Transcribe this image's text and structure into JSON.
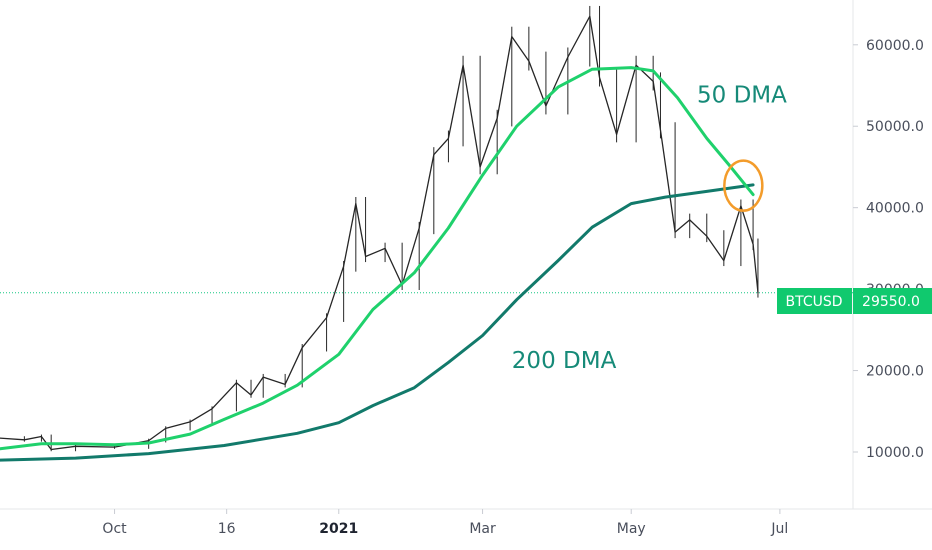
{
  "chart_data": {
    "type": "line",
    "symbol": "BTCUSD",
    "last_price_label": "29550.0",
    "last_price": 29550,
    "ylim": [
      3000,
      65500
    ],
    "y_ticks": [
      {
        "value": 60000,
        "label": "60000.0"
      },
      {
        "value": 50000,
        "label": "50000.0"
      },
      {
        "value": 40000,
        "label": "40000.0"
      },
      {
        "value": 30000,
        "label": "30000.0"
      },
      {
        "value": 20000,
        "label": "20000.0"
      },
      {
        "value": 10000,
        "label": "10000.0"
      }
    ],
    "xlim": [
      "2020-08-15",
      "2021-07-31"
    ],
    "x_ticks": [
      {
        "date": "2020-10-01",
        "label": "Oct",
        "bold": false
      },
      {
        "date": "2020-11-16",
        "label": "16",
        "bold": false
      },
      {
        "date": "2021-01-01",
        "label": "2021",
        "bold": true
      },
      {
        "date": "2021-03-01",
        "label": "Mar",
        "bold": false
      },
      {
        "date": "2021-05-01",
        "label": "May",
        "bold": false
      },
      {
        "date": "2021-07-01",
        "label": "Jul",
        "bold": false
      }
    ],
    "series": [
      {
        "name": "50 DMA",
        "color": "#1fd16c",
        "points": [
          [
            "2020-08-15",
            10400
          ],
          [
            "2020-09-01",
            11000
          ],
          [
            "2020-09-15",
            11000
          ],
          [
            "2020-10-01",
            10900
          ],
          [
            "2020-10-15",
            11100
          ],
          [
            "2020-11-01",
            12200
          ],
          [
            "2020-11-15",
            14000
          ],
          [
            "2020-12-01",
            16000
          ],
          [
            "2020-12-15",
            18200
          ],
          [
            "2021-01-01",
            22000
          ],
          [
            "2021-01-15",
            27500
          ],
          [
            "2021-02-01",
            32000
          ],
          [
            "2021-02-15",
            37500
          ],
          [
            "2021-03-01",
            44000
          ],
          [
            "2021-03-15",
            50000
          ],
          [
            "2021-04-01",
            54800
          ],
          [
            "2021-04-15",
            57000
          ],
          [
            "2021-05-01",
            57200
          ],
          [
            "2021-05-10",
            56800
          ],
          [
            "2021-05-20",
            53500
          ],
          [
            "2021-06-01",
            48500
          ],
          [
            "2021-06-10",
            45300
          ],
          [
            "2021-06-20",
            41600
          ]
        ]
      },
      {
        "name": "200 DMA",
        "color": "#127a6b",
        "points": [
          [
            "2020-08-15",
            9000
          ],
          [
            "2020-09-15",
            9250
          ],
          [
            "2020-10-15",
            9800
          ],
          [
            "2020-11-15",
            10800
          ],
          [
            "2020-12-15",
            12300
          ],
          [
            "2021-01-01",
            13600
          ],
          [
            "2021-01-15",
            15700
          ],
          [
            "2021-02-01",
            17900
          ],
          [
            "2021-02-15",
            21000
          ],
          [
            "2021-03-01",
            24300
          ],
          [
            "2021-03-15",
            28700
          ],
          [
            "2021-04-01",
            33500
          ],
          [
            "2021-04-15",
            37600
          ],
          [
            "2021-05-01",
            40500
          ],
          [
            "2021-05-15",
            41300
          ],
          [
            "2021-06-01",
            42000
          ],
          [
            "2021-06-20",
            42800
          ]
        ]
      },
      {
        "name": "BTCUSD",
        "color": "#262626",
        "points": [
          [
            "2020-08-15",
            11700
          ],
          [
            "2020-08-25",
            11500
          ],
          [
            "2020-09-01",
            11900
          ],
          [
            "2020-09-05",
            10300
          ],
          [
            "2020-09-15",
            10700
          ],
          [
            "2020-10-01",
            10600
          ],
          [
            "2020-10-15",
            11400
          ],
          [
            "2020-10-22",
            12900
          ],
          [
            "2020-11-01",
            13700
          ],
          [
            "2020-11-10",
            15300
          ],
          [
            "2020-11-20",
            18500
          ],
          [
            "2020-11-26",
            17000
          ],
          [
            "2020-12-01",
            19200
          ],
          [
            "2020-12-10",
            18300
          ],
          [
            "2020-12-17",
            22800
          ],
          [
            "2020-12-27",
            26500
          ],
          [
            "2021-01-03",
            32800
          ],
          [
            "2021-01-08",
            40500
          ],
          [
            "2021-01-12",
            34000
          ],
          [
            "2021-01-20",
            35000
          ],
          [
            "2021-01-27",
            30500
          ],
          [
            "2021-02-03",
            37500
          ],
          [
            "2021-02-09",
            46500
          ],
          [
            "2021-02-15",
            48500
          ],
          [
            "2021-02-21",
            57500
          ],
          [
            "2021-02-28",
            45000
          ],
          [
            "2021-03-07",
            51000
          ],
          [
            "2021-03-13",
            61000
          ],
          [
            "2021-03-20",
            58000
          ],
          [
            "2021-03-27",
            52500
          ],
          [
            "2021-04-05",
            58500
          ],
          [
            "2021-04-14",
            63500
          ],
          [
            "2021-04-18",
            56000
          ],
          [
            "2021-04-25",
            49000
          ],
          [
            "2021-05-03",
            57500
          ],
          [
            "2021-05-10",
            55500
          ],
          [
            "2021-05-13",
            49500
          ],
          [
            "2021-05-19",
            37000
          ],
          [
            "2021-05-25",
            38500
          ],
          [
            "2021-06-01",
            36500
          ],
          [
            "2021-06-08",
            33500
          ],
          [
            "2021-06-15",
            40200
          ],
          [
            "2021-06-20",
            35500
          ],
          [
            "2021-06-22",
            29550
          ]
        ]
      }
    ],
    "annotations": [
      {
        "text": "50 DMA",
        "series": "50 DMA",
        "anchor": [
          "2021-05-28",
          52900
        ],
        "color": "#168a78"
      },
      {
        "text": "200 DMA",
        "series": "200 DMA",
        "anchor": [
          "2021-03-13",
          20300
        ],
        "color": "#168a78"
      }
    ],
    "highlight": {
      "label": "crossover",
      "at": [
        "2021-06-16",
        42700
      ],
      "color": "#f39c2b"
    },
    "grid": false,
    "legend": "none"
  }
}
